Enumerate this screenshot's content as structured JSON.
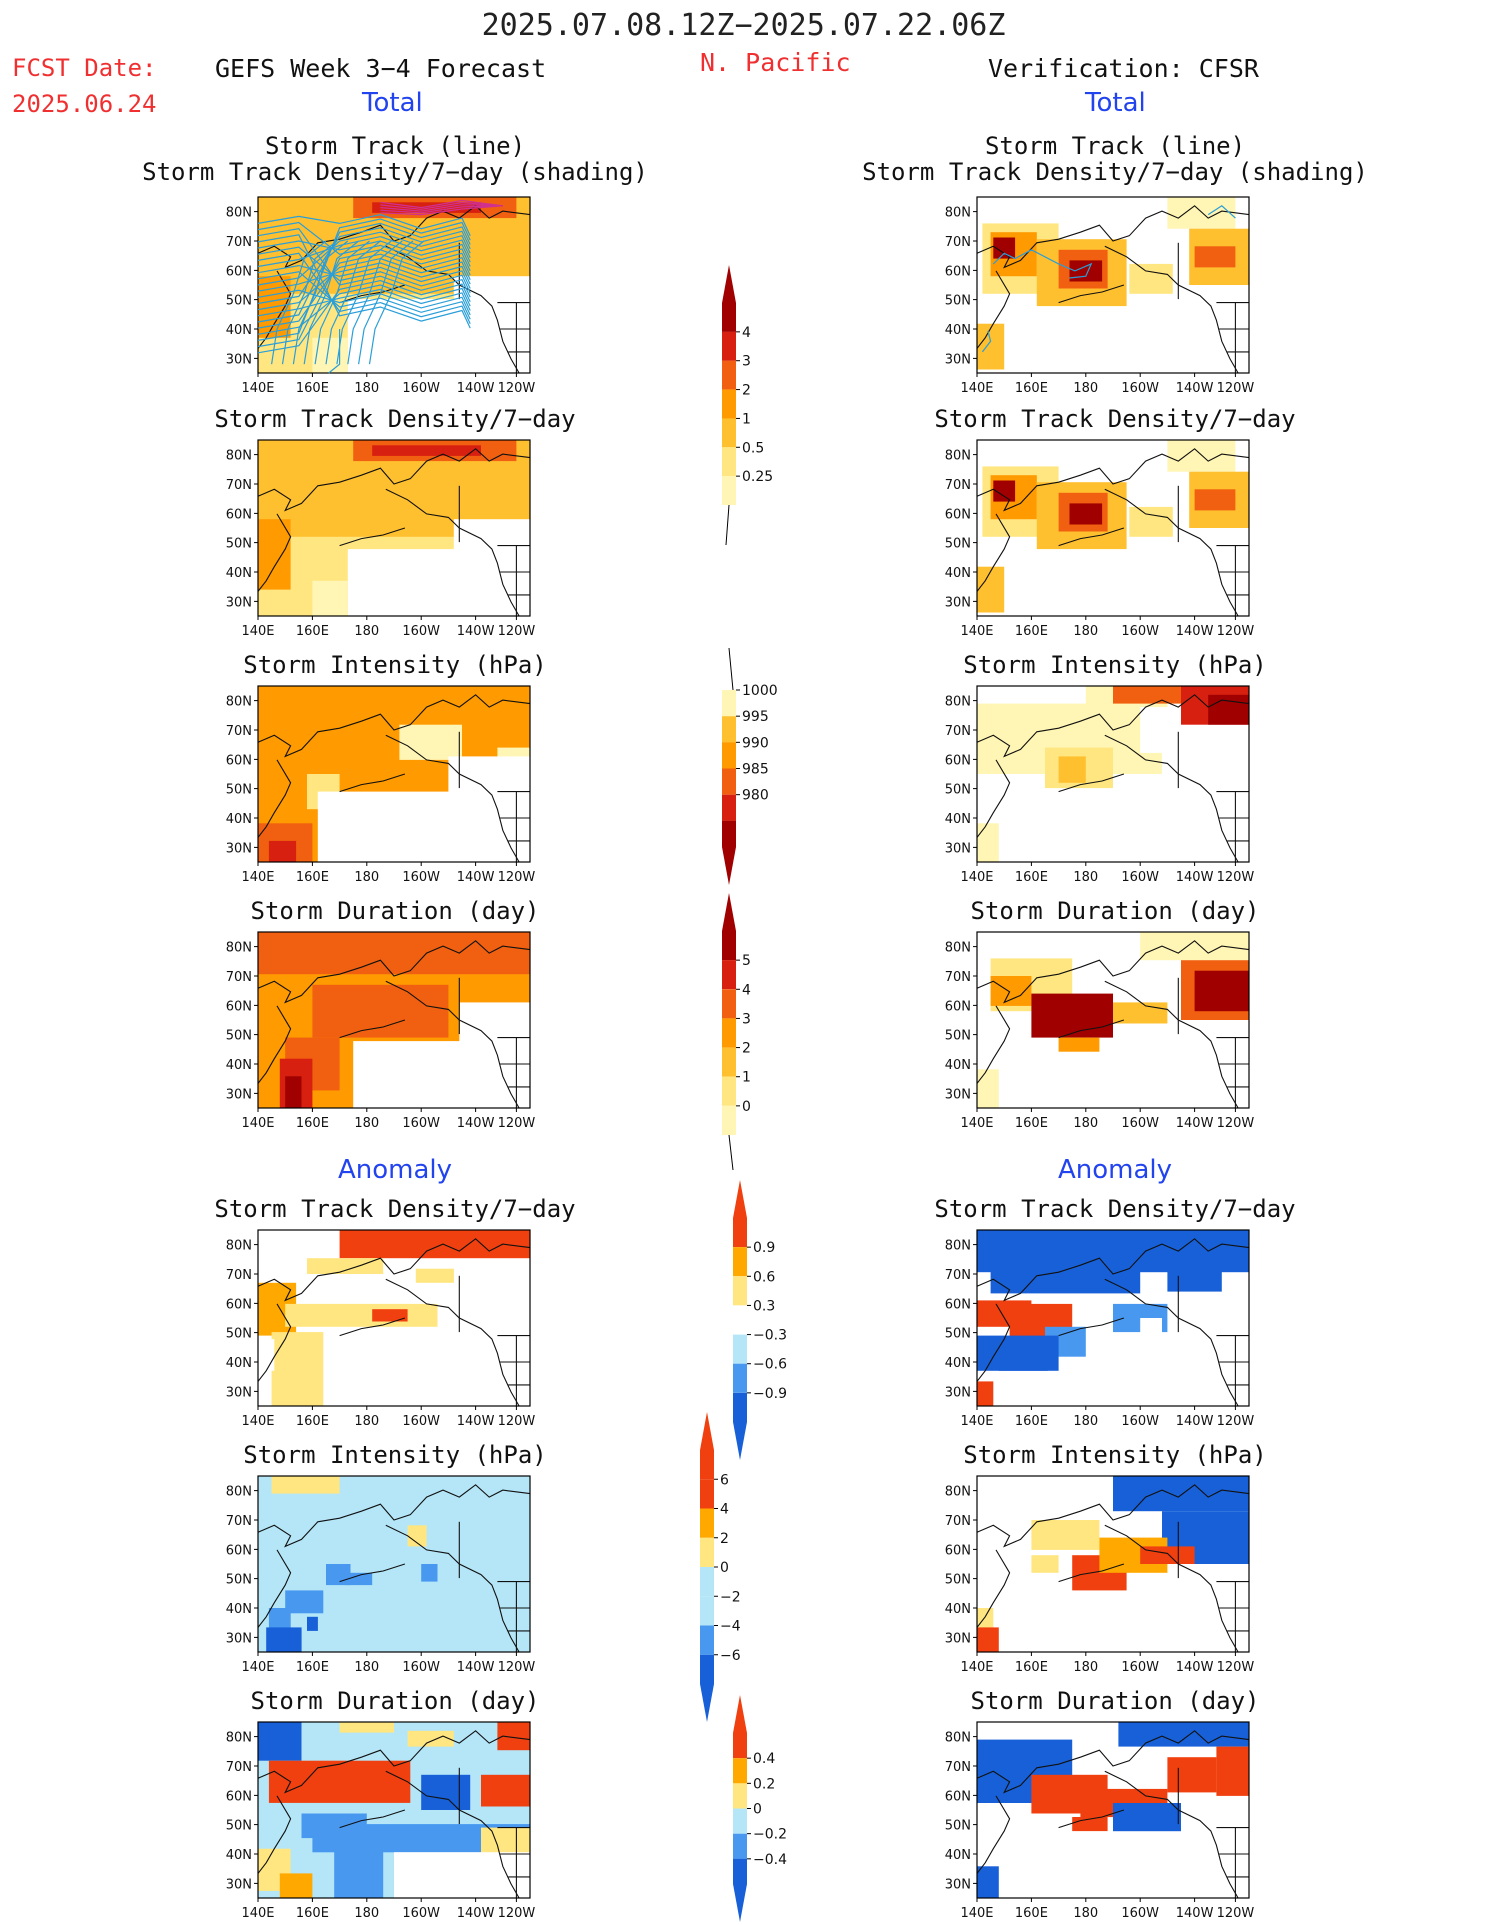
{
  "header": {
    "title": "2025.07.08.12Z−2025.07.22.06Z",
    "fcst_label": "FCST Date:",
    "fcst_date": "2025.06.24",
    "left_heading": "GEFS Week 3−4 Forecast",
    "region": "N. Pacific",
    "right_heading": "Verification: CFSR",
    "left_sub": "Total",
    "right_sub": "Total",
    "left_anom": "Anomaly",
    "right_anom": "Anomaly"
  },
  "panel_titles": {
    "track_l1": "Storm Track (line)",
    "track_l2": "Storm Track Density/7−day (shading)",
    "density": "Storm Track Density/7−day",
    "intensity": "Storm Intensity (hPa)",
    "duration": "Storm Duration (day)"
  },
  "axes": {
    "lat_labels": [
      "80N",
      "70N",
      "60N",
      "50N",
      "40N",
      "30N"
    ],
    "lon_labels": [
      "140E",
      "160E",
      "180",
      "160W",
      "140W",
      "120W"
    ]
  },
  "colors": {
    "total_scale": [
      "#fff5b4",
      "#ffe680",
      "#ffc030",
      "#ff9a00",
      "#f06010",
      "#d82010",
      "#a00000"
    ],
    "anom_scale": [
      "#1860d8",
      "#4898f0",
      "#b4e6f8",
      "#ffffff",
      "#ffe680",
      "#ffa800",
      "#f04010"
    ]
  },
  "colorbars": {
    "density_total": [
      "4",
      "3",
      "2",
      "1",
      "0.5",
      "0.25"
    ],
    "intensity_total": [
      "1000",
      "995",
      "990",
      "985",
      "980"
    ],
    "duration_total": [
      "5",
      "4",
      "3",
      "2",
      "1",
      "0"
    ],
    "density_anom": [
      "0.9",
      "0.6",
      "0.3",
      "−0.3",
      "−0.6",
      "−0.9"
    ],
    "intensity_anom": [
      "6",
      "4",
      "2",
      "0",
      "−2",
      "−4",
      "−6"
    ],
    "duration_anom": [
      "0.4",
      "0.2",
      "0",
      "−0.2",
      "−0.4"
    ]
  },
  "chart_data": {
    "type": "heatmap",
    "lon_range": [
      "140E",
      "120W"
    ],
    "lat_range": [
      "25N",
      "85N"
    ],
    "panels": [
      {
        "column": "forecast",
        "field": "storm track density (with track lines)",
        "kind": "total"
      },
      {
        "column": "forecast",
        "field": "storm track density",
        "kind": "total"
      },
      {
        "column": "forecast",
        "field": "storm intensity (hPa)",
        "kind": "total"
      },
      {
        "column": "forecast",
        "field": "storm duration (day)",
        "kind": "total"
      },
      {
        "column": "forecast",
        "field": "storm track density anomaly",
        "kind": "anomaly"
      },
      {
        "column": "forecast",
        "field": "storm intensity anomaly (hPa)",
        "kind": "anomaly"
      },
      {
        "column": "forecast",
        "field": "storm duration anomaly (day)",
        "kind": "anomaly"
      },
      {
        "column": "verification",
        "field": "storm track density (with track lines)",
        "kind": "total"
      },
      {
        "column": "verification",
        "field": "storm track density",
        "kind": "total"
      },
      {
        "column": "verification",
        "field": "storm intensity (hPa)",
        "kind": "total"
      },
      {
        "column": "verification",
        "field": "storm duration (day)",
        "kind": "total"
      },
      {
        "column": "verification",
        "field": "storm track density anomaly",
        "kind": "anomaly"
      },
      {
        "column": "verification",
        "field": "storm intensity anomaly (hPa)",
        "kind": "anomaly"
      },
      {
        "column": "verification",
        "field": "storm duration anomaly (day)",
        "kind": "anomaly"
      }
    ]
  }
}
